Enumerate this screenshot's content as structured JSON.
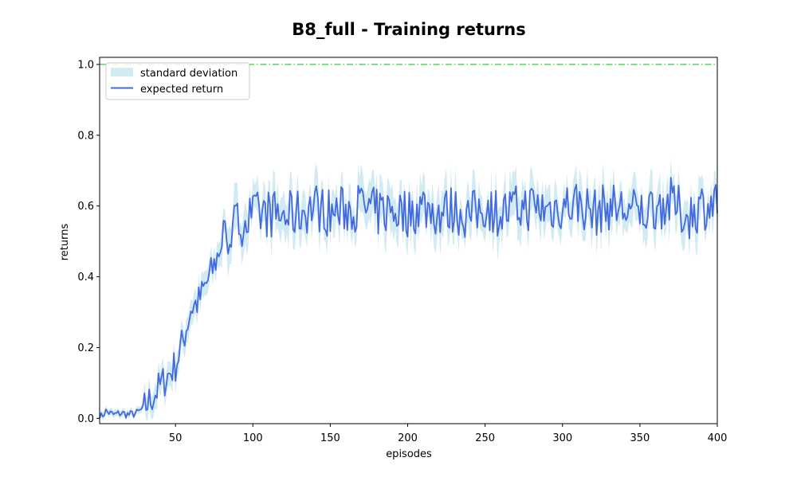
{
  "chart_data": {
    "type": "line",
    "title": "B8_full - Training returns",
    "xlabel": "episodes",
    "ylabel": "returns",
    "xlim": [
      1,
      400
    ],
    "ylim": [
      -0.015,
      1.02
    ],
    "x_ticks": [
      50,
      100,
      150,
      200,
      250,
      300,
      350,
      400
    ],
    "x_tick_labels": [
      "50",
      "100",
      "150",
      "200",
      "250",
      "300",
      "350",
      "400"
    ],
    "y_ticks": [
      0.0,
      0.2,
      0.4,
      0.6,
      0.8,
      1.0
    ],
    "y_tick_labels": [
      "0.0",
      "0.2",
      "0.4",
      "0.6",
      "0.8",
      "1.0"
    ],
    "grid": false,
    "legend_position": "top-left",
    "legend": [
      {
        "label": "standard deviation",
        "kind": "band",
        "color": "#add8e6"
      },
      {
        "label": "expected return",
        "kind": "line",
        "color": "#4169e1"
      }
    ],
    "reference_line": {
      "y": 1.0,
      "style": "dash-dot",
      "color": "#32cd32"
    },
    "series": [
      {
        "name": "expected return",
        "color": "#4169e1",
        "x": [
          1,
          5,
          10,
          15,
          20,
          25,
          30,
          35,
          40,
          45,
          50,
          55,
          60,
          65,
          70,
          75,
          80,
          85,
          90,
          95,
          100,
          110,
          120,
          130,
          140,
          150,
          160,
          170,
          180,
          190,
          200,
          210,
          220,
          230,
          240,
          250,
          260,
          270,
          280,
          290,
          300,
          310,
          320,
          330,
          340,
          350,
          360,
          370,
          380,
          390,
          400
        ],
        "y": [
          0.0,
          0.02,
          0.01,
          0.015,
          0.01,
          0.015,
          0.03,
          0.06,
          0.09,
          0.12,
          0.15,
          0.22,
          0.31,
          0.33,
          0.38,
          0.43,
          0.5,
          0.53,
          0.55,
          0.56,
          0.57,
          0.58,
          0.57,
          0.58,
          0.6,
          0.58,
          0.59,
          0.6,
          0.58,
          0.59,
          0.58,
          0.6,
          0.58,
          0.59,
          0.57,
          0.6,
          0.58,
          0.59,
          0.6,
          0.59,
          0.6,
          0.61,
          0.58,
          0.6,
          0.59,
          0.58,
          0.6,
          0.61,
          0.57,
          0.6,
          0.61
        ]
      }
    ]
  }
}
